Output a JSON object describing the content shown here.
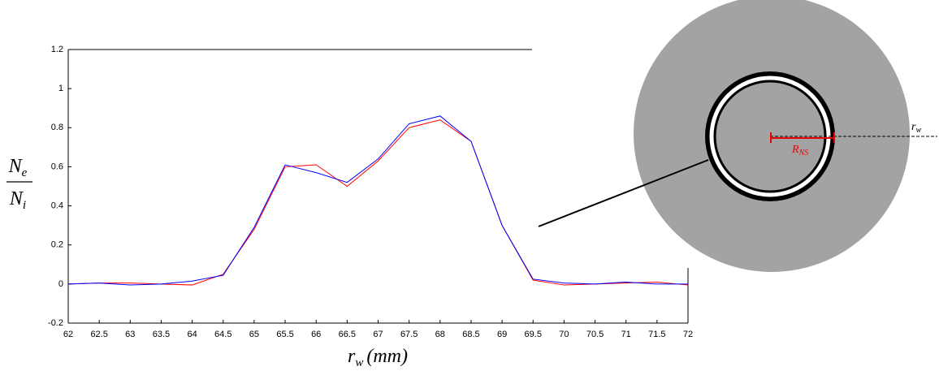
{
  "chart_data": {
    "type": "line",
    "x": [
      62,
      62.5,
      63,
      63.5,
      64,
      64.5,
      65,
      65.5,
      66,
      66.5,
      67,
      67.5,
      68,
      68.5,
      69,
      69.5,
      70,
      70.5,
      71,
      71.5,
      72
    ],
    "series": [
      {
        "color": "#ff0000",
        "values": [
          0,
          0.005,
          0.005,
          0,
          -0.005,
          0.05,
          0.28,
          0.6,
          0.61,
          0.5,
          0.63,
          0.8,
          0.84,
          0.73,
          0.3,
          0.02,
          -0.005,
          0,
          0.005,
          0.01,
          -0.005
        ]
      },
      {
        "color": "#0000ff",
        "values": [
          0,
          0.005,
          -0.005,
          0,
          0.015,
          0.045,
          0.29,
          0.61,
          0.57,
          0.52,
          0.64,
          0.82,
          0.86,
          0.73,
          0.3,
          0.025,
          0.005,
          0,
          0.01,
          0,
          0
        ]
      }
    ],
    "xlim": [
      62,
      72
    ],
    "xticks": [
      62,
      62.5,
      63,
      63.5,
      64,
      64.5,
      65,
      65.5,
      66,
      66.5,
      67,
      67.5,
      68,
      68.5,
      69,
      69.5,
      70,
      70.5,
      71,
      71.5,
      72
    ],
    "ylim": [
      -0.2,
      1.2
    ],
    "yticks": [
      -0.2,
      0,
      0.2,
      0.4,
      0.6,
      0.8,
      1,
      1.2
    ],
    "xlabel": [
      "r",
      "w",
      "(mm)"
    ],
    "ylabel": {
      "numerator": [
        "N",
        "e"
      ],
      "denominator": [
        "N",
        "i"
      ]
    }
  },
  "diagram": {
    "radius_label": [
      "R",
      "NS"
    ],
    "wall_label": [
      "r",
      "w"
    ]
  }
}
